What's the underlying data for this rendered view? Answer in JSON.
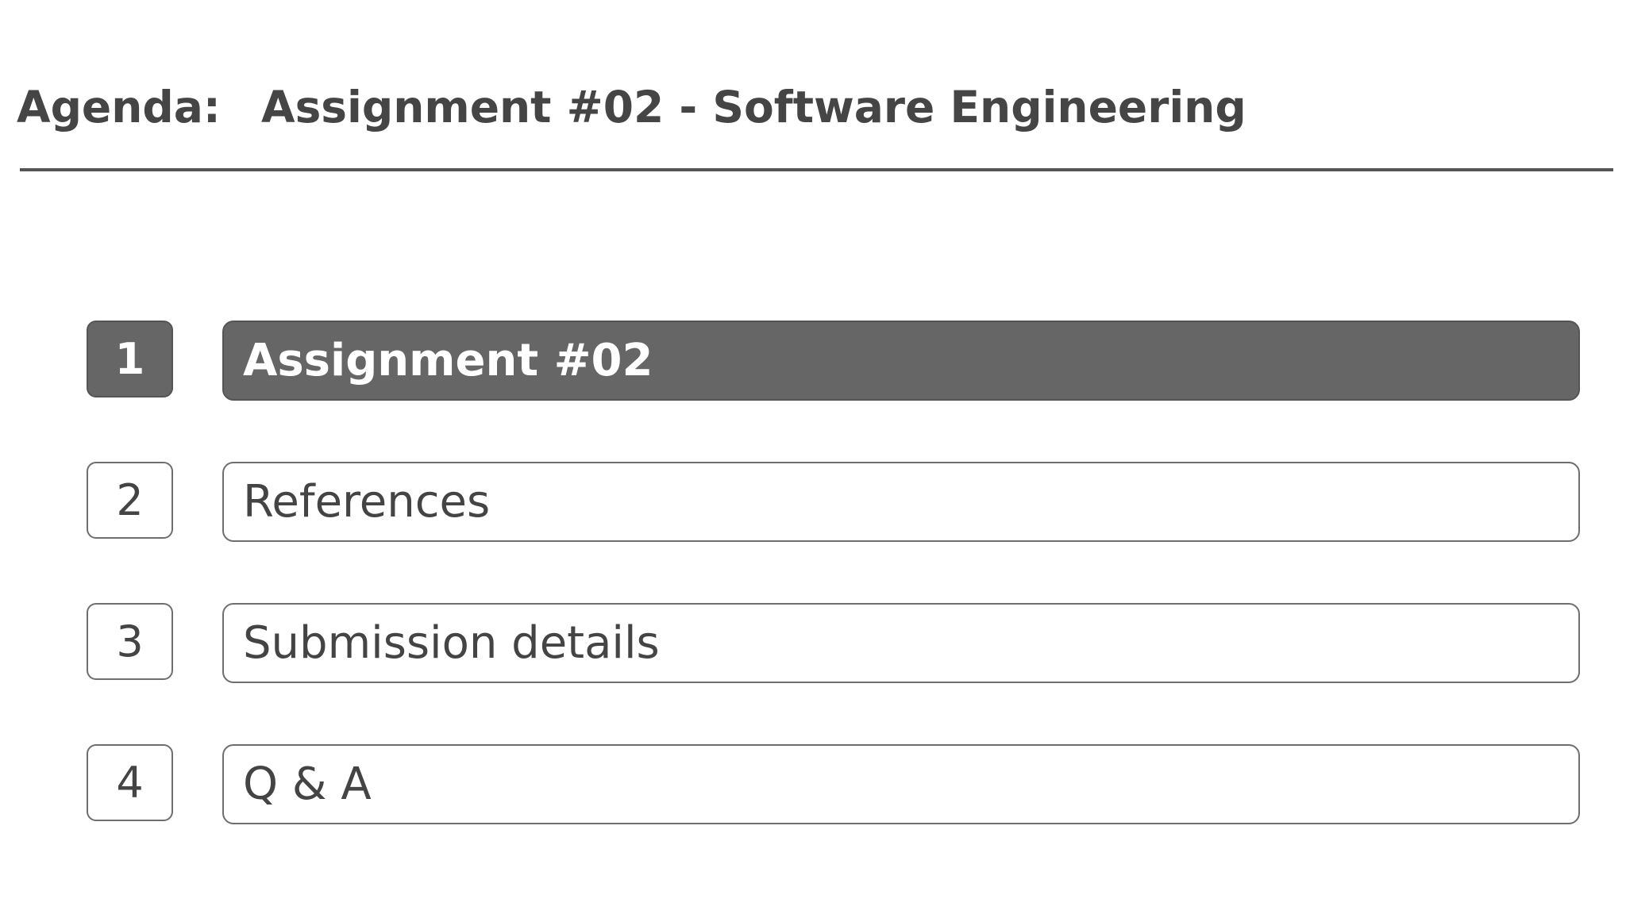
{
  "header": {
    "label": "Agenda:",
    "title": "Assignment #02 - Software Engineering"
  },
  "items": [
    {
      "number": "1",
      "label": "Assignment #02",
      "active": true
    },
    {
      "number": "2",
      "label": "References",
      "active": false
    },
    {
      "number": "3",
      "label": "Submission details",
      "active": false
    },
    {
      "number": "4",
      "label": "Q & A",
      "active": false
    }
  ],
  "colors": {
    "active_fill": "#666666",
    "text": "#444444",
    "border": "#6e6e6e"
  }
}
